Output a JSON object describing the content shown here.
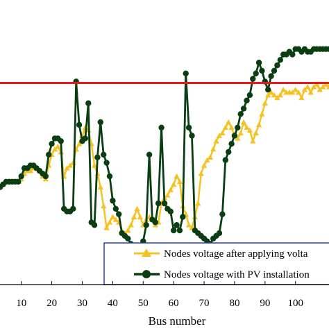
{
  "chart_data": {
    "type": "line",
    "xlabel": "Bus number",
    "ylabel": "",
    "title": "",
    "xlim": [
      3,
      111
    ],
    "ylim": [
      0,
      100
    ],
    "xticks": [
      10,
      20,
      30,
      40,
      50,
      60,
      70,
      80,
      90,
      100
    ],
    "xtick_labels": [
      "10",
      "20",
      "30",
      "40",
      "50",
      "60",
      "70",
      "80",
      "90",
      "100"
    ],
    "grid": false,
    "legend_position": "bottom-right",
    "reference_line": {
      "y": 74.5,
      "color": "#e8191c"
    },
    "x": [
      3,
      4,
      5,
      6,
      7,
      8,
      9,
      10,
      11,
      12,
      13,
      14,
      15,
      16,
      17,
      18,
      19,
      20,
      21,
      22,
      23,
      24,
      25,
      26,
      27,
      28,
      29,
      30,
      31,
      32,
      33,
      34,
      35,
      36,
      37,
      38,
      39,
      40,
      41,
      42,
      43,
      44,
      45,
      46,
      47,
      48,
      49,
      50,
      51,
      52,
      53,
      54,
      55,
      56,
      57,
      58,
      59,
      60,
      61,
      62,
      63,
      64,
      65,
      66,
      67,
      68,
      69,
      70,
      71,
      72,
      73,
      74,
      75,
      76,
      77,
      78,
      79,
      80,
      81,
      82,
      83,
      84,
      85,
      86,
      87,
      88,
      89,
      90,
      91,
      92,
      93,
      94,
      95,
      96,
      97,
      98,
      99,
      100,
      101,
      102,
      103,
      104,
      105,
      106,
      107,
      108,
      109,
      110,
      111
    ],
    "series": [
      {
        "name": "Nodes voltage after applying volta",
        "color": "#f5c223",
        "marker": "triangle",
        "values": [
          36,
          37,
          38,
          38,
          38,
          38,
          38,
          39,
          41,
          42,
          42,
          43,
          43,
          42,
          40,
          39,
          44,
          48,
          50,
          51,
          49,
          40,
          43,
          44,
          45,
          50,
          52,
          55,
          58,
          57,
          52,
          44,
          41,
          36,
          29,
          21,
          23,
          25,
          24,
          23,
          20,
          19,
          20,
          22,
          25,
          28,
          25,
          22,
          24,
          25,
          24,
          22,
          23,
          30,
          32,
          33,
          35,
          37,
          40,
          38,
          29,
          26,
          22,
          21,
          25,
          30,
          41,
          44,
          46,
          47,
          50,
          53,
          55,
          56,
          58,
          60,
          58,
          55,
          54,
          56,
          60,
          58,
          57,
          53,
          56,
          59,
          63,
          67,
          70,
          71,
          70,
          69,
          70,
          72,
          71,
          71,
          71,
          72,
          71,
          69,
          72,
          73,
          71,
          73,
          74,
          72,
          73,
          74,
          73
        ]
      },
      {
        "name": "Nodes voltage with PV installation",
        "color": "#0a3d12",
        "marker": "circle",
        "values": [
          36,
          37,
          38,
          38,
          38,
          38,
          38,
          40,
          43,
          43,
          44,
          44,
          43,
          42,
          41,
          40,
          48,
          52,
          54,
          54,
          53,
          28,
          27,
          27,
          28,
          75,
          59,
          53,
          54,
          67,
          23,
          22,
          47,
          60,
          48,
          45,
          40,
          31,
          28,
          26,
          19,
          18,
          17,
          15,
          13,
          12,
          14,
          16,
          22,
          48,
          24,
          23,
          30,
          58,
          30,
          28,
          27,
          20,
          22,
          20,
          25,
          78,
          58,
          55,
          20,
          19,
          18,
          17,
          16,
          15,
          17,
          18,
          19,
          26,
          46,
          49,
          52,
          55,
          58,
          63,
          65,
          68,
          70,
          76,
          78,
          82,
          79,
          75,
          72,
          77,
          79,
          81,
          83,
          85,
          85,
          86,
          85,
          87,
          87,
          86,
          87,
          86,
          86,
          87,
          87,
          87,
          87,
          87,
          87
        ]
      }
    ]
  }
}
